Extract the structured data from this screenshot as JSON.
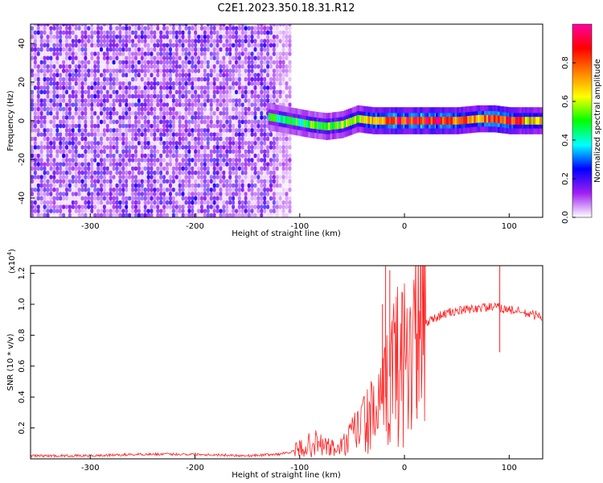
{
  "title": "C2E1.2023.350.18.31.R12",
  "chart_data": [
    {
      "type": "heatmap",
      "xlabel": "Height of straight line (km)",
      "ylabel": "Frequency (Hz)",
      "xlim": [
        -357,
        132
      ],
      "ylim": [
        -50,
        50
      ],
      "xticks": [
        -300,
        -200,
        -100,
        0,
        100
      ],
      "yticks": [
        -40,
        -20,
        0,
        20,
        40
      ],
      "colorbar": {
        "label": "Normalized spectral amplitude",
        "range": [
          0.0,
          1.0
        ],
        "ticks": [
          0.0,
          0.2,
          0.4,
          0.6,
          0.8
        ],
        "colors": [
          "#ffffff",
          "#a020f0",
          "#0000ff",
          "#00ffff",
          "#00ff00",
          "#ffff00",
          "#ff8000",
          "#ff0000",
          "#ff00a0"
        ]
      },
      "noise_region_x": [
        -357,
        -110
      ],
      "signal_band": [
        {
          "x": -130,
          "f": 2,
          "amp": 0.45
        },
        {
          "x": -110,
          "f": 0,
          "amp": 0.45
        },
        {
          "x": -90,
          "f": -2,
          "amp": 0.5
        },
        {
          "x": -75,
          "f": -3,
          "amp": 0.5
        },
        {
          "x": -60,
          "f": -2,
          "amp": 0.55
        },
        {
          "x": -45,
          "f": 1,
          "amp": 0.65
        },
        {
          "x": -30,
          "f": 0,
          "amp": 0.75
        },
        {
          "x": -15,
          "f": 0,
          "amp": 0.85
        },
        {
          "x": 0,
          "f": 0,
          "amp": 0.85
        },
        {
          "x": 15,
          "f": 0,
          "amp": 0.9
        },
        {
          "x": 30,
          "f": 0,
          "amp": 0.85
        },
        {
          "x": 50,
          "f": 0,
          "amp": 0.8
        },
        {
          "x": 70,
          "f": 1,
          "amp": 0.75
        },
        {
          "x": 85,
          "f": 1,
          "amp": 0.9
        },
        {
          "x": 100,
          "f": 0,
          "amp": 0.85
        },
        {
          "x": 115,
          "f": 0,
          "amp": 0.7
        },
        {
          "x": 132,
          "f": 0,
          "amp": 0.6
        }
      ]
    },
    {
      "type": "line",
      "xlabel": "Height of straight line (km)",
      "ylabel": "SNR (10 * v/v)",
      "multiplier_label": "(x10",
      "multiplier_exp": "4",
      "multiplier_close": ")",
      "xlim": [
        -357,
        132
      ],
      "ylim": [
        0,
        1.25
      ],
      "xticks": [
        -300,
        -200,
        -100,
        0,
        100
      ],
      "yticks": [
        0.2,
        0.4,
        0.6,
        0.8,
        1.0,
        1.2
      ],
      "series": [
        {
          "color": "#ff2020",
          "x": [
            -357,
            -300,
            -250,
            -200,
            -150,
            -120,
            -105,
            -95,
            -85,
            -75,
            -65,
            -55,
            -45,
            -35,
            -25,
            -18,
            -12,
            -5,
            5,
            15,
            25,
            35,
            45,
            55,
            65,
            75,
            85,
            90,
            95,
            105,
            115,
            125,
            132
          ],
          "y": [
            0.02,
            0.02,
            0.03,
            0.03,
            0.02,
            0.03,
            0.05,
            0.08,
            0.1,
            0.08,
            0.06,
            0.1,
            0.2,
            0.25,
            0.3,
            0.4,
            0.6,
            0.62,
            0.72,
            0.85,
            0.9,
            0.93,
            0.95,
            0.96,
            0.97,
            0.98,
            0.98,
            0.98,
            0.97,
            0.96,
            0.94,
            0.93,
            0.92
          ]
        }
      ],
      "spikes": [
        {
          "x": 91,
          "y": 1.25
        },
        {
          "x": 91,
          "y": 0.69
        },
        {
          "x": -18,
          "y": 1.25
        },
        {
          "x": -14,
          "y": 1.22
        },
        {
          "x": -21,
          "y": 1.0
        },
        {
          "x": 12,
          "y": 0.26
        }
      ]
    }
  ]
}
